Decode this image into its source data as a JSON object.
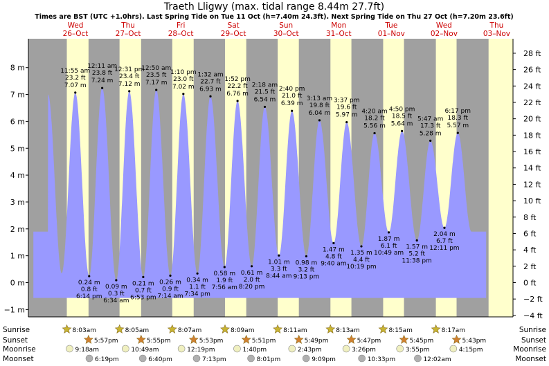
{
  "colors": {
    "night": "#a0a0a0",
    "day": "#ffffcc",
    "tide": "#9999ff",
    "day_label": "#cc0000",
    "text": "#000000",
    "sun_icon": "#c8b432",
    "sunset_icon": "#d08030",
    "moon_icon": "#f0f0c0",
    "moonset_icon": "#b0b0b0"
  },
  "chart_data": {
    "type": "area",
    "title": "Traeth Lligwy (max. tidal range 8.44m 27.7ft)",
    "subtitle": "Times are BST (UTC +1.0hrs). Last Spring Tide on Tue 11 Oct (h=7.40m 24.3ft). Next Spring Tide on Thu 27 Oct (h=7.20m 23.6ft)",
    "y_left": {
      "unit": "m",
      "range": [
        -1.4,
        8.7
      ],
      "ticks": [
        {
          "value": 8,
          "label": "8 m"
        },
        {
          "value": 7,
          "label": "7 m"
        },
        {
          "value": 6,
          "label": "6 m"
        },
        {
          "value": 5,
          "label": "5 m"
        },
        {
          "value": 4,
          "label": "4 m"
        },
        {
          "value": 3,
          "label": "3 m"
        },
        {
          "value": 2,
          "label": "2 m"
        },
        {
          "value": 1,
          "label": "1 m"
        },
        {
          "value": 0,
          "label": "0 m"
        },
        {
          "value": -1,
          "label": "−1 m"
        }
      ]
    },
    "y_right": {
      "unit": "ft",
      "ticks": [
        {
          "value": 28,
          "label": "28 ft"
        },
        {
          "value": 26,
          "label": "26 ft"
        },
        {
          "value": 24,
          "label": "24 ft"
        },
        {
          "value": 22,
          "label": "22 ft"
        },
        {
          "value": 20,
          "label": "20 ft"
        },
        {
          "value": 18,
          "label": "18 ft"
        },
        {
          "value": 16,
          "label": "16 ft"
        },
        {
          "value": 14,
          "label": "14 ft"
        },
        {
          "value": 12,
          "label": "12 ft"
        },
        {
          "value": 10,
          "label": "10 ft"
        },
        {
          "value": 8,
          "label": "8 ft"
        },
        {
          "value": 6,
          "label": "6 ft"
        },
        {
          "value": 4,
          "label": "4 ft"
        },
        {
          "value": 2,
          "label": "2 ft"
        },
        {
          "value": 0,
          "label": "0 ft"
        },
        {
          "value": -2,
          "label": "−2 ft"
        },
        {
          "value": -4,
          "label": "−4 ft"
        }
      ]
    },
    "days": [
      {
        "dow": "Wed",
        "date": "26–Oct",
        "start": 0.0
      },
      {
        "dow": "Thu",
        "date": "27–Oct",
        "start": 1.0
      },
      {
        "dow": "Fri",
        "date": "28–Oct",
        "start": 2.0
      },
      {
        "dow": "Sat",
        "date": "29–Oct",
        "start": 3.0
      },
      {
        "dow": "Sun",
        "date": "30–Oct",
        "start": 4.0
      },
      {
        "dow": "Mon",
        "date": "31–Oct",
        "start": 5.0
      },
      {
        "dow": "Tue",
        "date": "01–Nov",
        "start": 6.0
      },
      {
        "dow": "Wed",
        "date": "02–Nov",
        "start": 7.0
      },
      {
        "dow": "Thu",
        "date": "03–Nov",
        "start": 8.0
      }
    ],
    "highs": [
      {
        "time": "11:55 am",
        "ft": "23.2 ft",
        "m": 7.07,
        "label_m": "7.07 m",
        "day": 0,
        "h": 11.92
      },
      {
        "time": "12:11 am",
        "ft": "23.8 ft",
        "m": 7.24,
        "label_m": "7.24 m",
        "day": 1,
        "h": 0.18
      },
      {
        "time": "12:31 pm",
        "ft": "23.4 ft",
        "m": 7.12,
        "label_m": "7.12 m",
        "day": 1,
        "h": 12.52
      },
      {
        "time": "12:50 am",
        "ft": "23.5 ft",
        "m": 7.17,
        "label_m": "7.17 m",
        "day": 2,
        "h": 0.83
      },
      {
        "time": "1:10 pm",
        "ft": "23.0 ft",
        "m": 7.02,
        "label_m": "7.02 m",
        "day": 2,
        "h": 13.17
      },
      {
        "time": "1:32 am",
        "ft": "22.7 ft",
        "m": 6.93,
        "label_m": "6.93 m",
        "day": 3,
        "h": 1.53
      },
      {
        "time": "1:52 pm",
        "ft": "22.2 ft",
        "m": 6.76,
        "label_m": "6.76 m",
        "day": 3,
        "h": 13.87
      },
      {
        "time": "2:18 am",
        "ft": "21.5 ft",
        "m": 6.54,
        "label_m": "6.54 m",
        "day": 4,
        "h": 2.3
      },
      {
        "time": "2:40 pm",
        "ft": "21.0 ft",
        "m": 6.39,
        "label_m": "6.39 m",
        "day": 4,
        "h": 14.67
      },
      {
        "time": "3:13 am",
        "ft": "19.8 ft",
        "m": 6.04,
        "label_m": "6.04 m",
        "day": 5,
        "h": 3.22
      },
      {
        "time": "3:37 pm",
        "ft": "19.6 ft",
        "m": 5.97,
        "label_m": "5.97 m",
        "day": 5,
        "h": 15.62
      },
      {
        "time": "4:20 am",
        "ft": "18.2 ft",
        "m": 5.56,
        "label_m": "5.56 m",
        "day": 6,
        "h": 4.33
      },
      {
        "time": "4:50 pm",
        "ft": "18.5 ft",
        "m": 5.64,
        "label_m": "5.64 m",
        "day": 6,
        "h": 16.83
      },
      {
        "time": "5:47 am",
        "ft": "17.3 ft",
        "m": 5.28,
        "label_m": "5.28 m",
        "day": 7,
        "h": 5.78
      },
      {
        "time": "6:17 pm",
        "ft": "18.3 ft",
        "m": 5.57,
        "label_m": "5.57 m",
        "day": 7,
        "h": 18.28
      }
    ],
    "lows": [
      {
        "m": 0.24,
        "label_m": "0.24 m",
        "ft": "0.8 ft",
        "time": "6:14 pm",
        "day": 0,
        "h": 18.23
      },
      {
        "m": 0.09,
        "label_m": "0.09 m",
        "ft": "0.3 ft",
        "time": "6:34 am",
        "day": 1,
        "h": 6.57
      },
      {
        "m": 0.21,
        "label_m": "0.21 m",
        "ft": "0.7 ft",
        "time": "6:53 pm",
        "day": 1,
        "h": 18.88
      },
      {
        "m": 0.26,
        "label_m": "0.26 m",
        "ft": "0.9 ft",
        "time": "7:14 am",
        "day": 2,
        "h": 7.23
      },
      {
        "m": 0.34,
        "label_m": "0.34 m",
        "ft": "1.1 ft",
        "time": "7:34 pm",
        "day": 2,
        "h": 19.57
      },
      {
        "m": 0.58,
        "label_m": "0.58 m",
        "ft": "1.9 ft",
        "time": "7:56 am",
        "day": 3,
        "h": 7.93
      },
      {
        "m": 0.61,
        "label_m": "0.61 m",
        "ft": "2.0 ft",
        "time": "8:20 pm",
        "day": 3,
        "h": 20.33
      },
      {
        "m": 1.01,
        "label_m": "1.01 m",
        "ft": "3.3 ft",
        "time": "8:44 am",
        "day": 4,
        "h": 8.73
      },
      {
        "m": 0.98,
        "label_m": "0.98 m",
        "ft": "3.2 ft",
        "time": "9:13 pm",
        "day": 4,
        "h": 21.22
      },
      {
        "m": 1.47,
        "label_m": "1.47 m",
        "ft": "4.8 ft",
        "time": "9:40 am",
        "day": 5,
        "h": 9.67
      },
      {
        "m": 1.35,
        "label_m": "1.35 m",
        "ft": "4.4 ft",
        "time": "10:19 pm",
        "day": 5,
        "h": 22.32
      },
      {
        "m": 1.87,
        "label_m": "1.87 m",
        "ft": "6.1 ft",
        "time": "10:49 am",
        "day": 6,
        "h": 10.82
      },
      {
        "m": 1.57,
        "label_m": "1.57 m",
        "ft": "5.2 ft",
        "time": "11:38 pm",
        "day": 6,
        "h": 23.63
      },
      {
        "m": 2.04,
        "label_m": "2.04 m",
        "ft": "6.7 ft",
        "time": "12:11 pm",
        "day": 7,
        "h": 12.18
      }
    ],
    "sunrise": [
      {
        "day": 0,
        "h": 8.05,
        "label": "8:03am"
      },
      {
        "day": 1,
        "h": 8.08,
        "label": "8:05am"
      },
      {
        "day": 2,
        "h": 8.12,
        "label": "8:07am"
      },
      {
        "day": 3,
        "h": 8.15,
        "label": "8:09am"
      },
      {
        "day": 4,
        "h": 8.18,
        "label": "8:11am"
      },
      {
        "day": 5,
        "h": 8.22,
        "label": "8:13am"
      },
      {
        "day": 6,
        "h": 8.25,
        "label": "8:15am"
      },
      {
        "day": 7,
        "h": 8.28,
        "label": "8:17am"
      }
    ],
    "sunset": [
      {
        "day": 0,
        "h": 17.95,
        "label": "5:57pm"
      },
      {
        "day": 1,
        "h": 17.92,
        "label": "5:55pm"
      },
      {
        "day": 2,
        "h": 17.88,
        "label": "5:53pm"
      },
      {
        "day": 3,
        "h": 17.85,
        "label": "5:51pm"
      },
      {
        "day": 4,
        "h": 17.82,
        "label": "5:49pm"
      },
      {
        "day": 5,
        "h": 17.78,
        "label": "5:47pm"
      },
      {
        "day": 6,
        "h": 17.75,
        "label": "5:45pm"
      },
      {
        "day": 7,
        "h": 17.72,
        "label": "5:43pm"
      }
    ],
    "moonrise": [
      {
        "day": 0,
        "h": 9.3,
        "label": "9:18am"
      },
      {
        "day": 1,
        "h": 10.82,
        "label": "10:49am"
      },
      {
        "day": 2,
        "h": 12.32,
        "label": "12:19pm"
      },
      {
        "day": 3,
        "h": 13.67,
        "label": "1:40pm"
      },
      {
        "day": 4,
        "h": 14.72,
        "label": "2:43pm"
      },
      {
        "day": 5,
        "h": 15.43,
        "label": "3:26pm"
      },
      {
        "day": 6,
        "h": 15.92,
        "label": "3:55pm"
      },
      {
        "day": 7,
        "h": 16.25,
        "label": "4:15pm"
      }
    ],
    "moonset": [
      {
        "day": 0,
        "h": 18.32,
        "label": "6:19pm"
      },
      {
        "day": 1,
        "h": 18.67,
        "label": "6:40pm"
      },
      {
        "day": 2,
        "h": 19.22,
        "label": "7:13pm"
      },
      {
        "day": 3,
        "h": 20.02,
        "label": "8:01pm"
      },
      {
        "day": 4,
        "h": 21.15,
        "label": "9:09pm"
      },
      {
        "day": 5,
        "h": 22.55,
        "label": "10:33pm"
      },
      {
        "day": 7,
        "h": 0.03,
        "label": "12:02am"
      }
    ],
    "row_labels": {
      "sunrise": "Sunrise",
      "sunset": "Sunset",
      "moonrise": "Moonrise",
      "moonset": "Moonset"
    }
  }
}
